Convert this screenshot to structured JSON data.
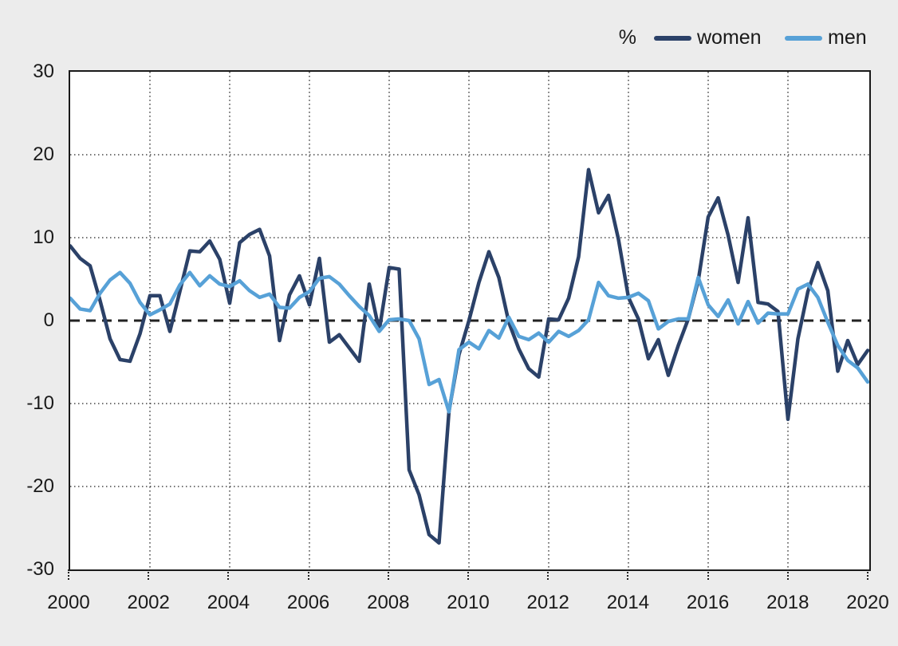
{
  "page": {
    "background_color": "#ececec",
    "plot_background": "#ffffff",
    "axis_color": "#1a1a1a"
  },
  "legend": {
    "unit_label": "%",
    "position": "top-right"
  },
  "chart_data": {
    "type": "line",
    "title": "",
    "xlabel": "",
    "ylabel": "%",
    "ylim": [
      -30,
      30
    ],
    "y_tick_labels": [
      "30",
      "20",
      "10",
      "0",
      "-10",
      "-20",
      "-30"
    ],
    "x_tick_labels": [
      "2000",
      "2002",
      "2004",
      "2006",
      "2008",
      "2010",
      "2012",
      "2014",
      "2016",
      "2018",
      "2020"
    ],
    "x_start_year": 2000,
    "x_end_year": 2020,
    "points_per_year": 4,
    "frequency": "quarterly",
    "grid": "dotted",
    "zero_line": "dashed-black",
    "legend_position": "top-right",
    "series": [
      {
        "name": "women",
        "color": "#2b4168",
        "values": [
          9.0,
          7.5,
          6.6,
          2.4,
          -2.2,
          -4.7,
          -4.9,
          -1.6,
          3.0,
          3.0,
          -1.3,
          3.5,
          8.4,
          8.3,
          9.6,
          7.4,
          2.1,
          9.4,
          10.4,
          11.0,
          7.8,
          -2.4,
          3.1,
          5.4,
          1.9,
          7.5,
          -2.6,
          -1.7,
          -3.3,
          -4.9,
          4.4,
          -1.2,
          6.4,
          6.2,
          -18.0,
          -21.0,
          -25.8,
          -26.8,
          -10.9,
          -4.1,
          0.0,
          4.6,
          8.3,
          5.2,
          -0.2,
          -3.4,
          -5.8,
          -6.8,
          0.2,
          0.1,
          2.7,
          7.7,
          18.2,
          13.0,
          15.1,
          9.8,
          2.8,
          0.2,
          -4.6,
          -2.3,
          -6.6,
          -3.0,
          0.2,
          4.8,
          12.5,
          14.8,
          10.3,
          4.6,
          12.4,
          2.2,
          2.0,
          1.1,
          -11.9,
          -2.2,
          3.5,
          7.0,
          3.6,
          -6.1,
          -2.4,
          -5.3,
          -3.6
        ]
      },
      {
        "name": "men",
        "color": "#57a1d7",
        "values": [
          2.7,
          1.4,
          1.2,
          3.3,
          4.9,
          5.8,
          4.5,
          2.2,
          0.7,
          1.3,
          2.0,
          4.3,
          5.8,
          4.2,
          5.4,
          4.4,
          4.1,
          4.8,
          3.6,
          2.8,
          3.2,
          1.6,
          1.5,
          2.8,
          3.5,
          5.1,
          5.3,
          4.4,
          3.0,
          1.7,
          0.6,
          -1.3,
          0.1,
          0.2,
          0.0,
          -2.2,
          -7.7,
          -7.1,
          -11.0,
          -3.5,
          -2.6,
          -3.4,
          -1.2,
          -2.1,
          0.4,
          -1.9,
          -2.3,
          -1.5,
          -2.6,
          -1.3,
          -1.9,
          -1.2,
          0.1,
          4.6,
          3.0,
          2.7,
          2.8,
          3.3,
          2.4,
          -1.0,
          -0.1,
          0.2,
          0.2,
          5.2,
          1.9,
          0.5,
          2.5,
          -0.4,
          2.3,
          -0.3,
          0.9,
          0.8,
          0.8,
          3.8,
          4.4,
          2.8,
          -0.2,
          -3.0,
          -4.8,
          -5.7,
          -7.4
        ]
      }
    ]
  }
}
